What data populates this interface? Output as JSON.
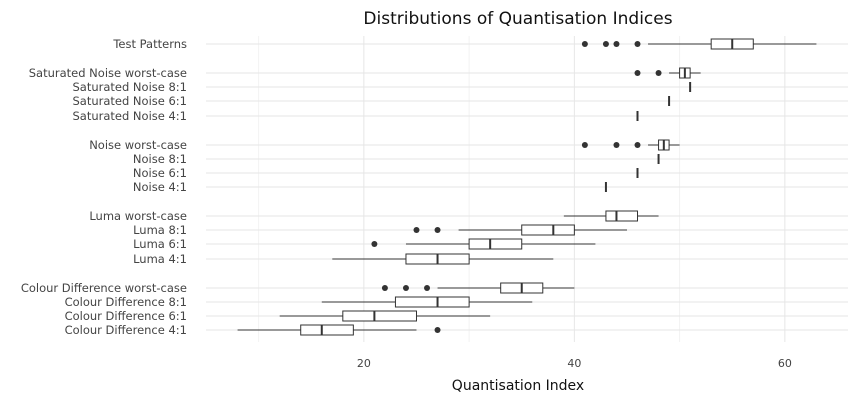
{
  "chart_data": {
    "type": "boxplot",
    "orientation": "horizontal",
    "title": "Distributions of Quantisation Indices",
    "xlabel": "Quantisation Index",
    "ylabel": "",
    "xlim": [
      5,
      66
    ],
    "xticks": [
      20,
      40,
      60
    ],
    "grid": true,
    "colors": {
      "box_fill": "#ffffff",
      "stroke": "#333333",
      "outlier": "#333333",
      "grid": "#e6e6e6"
    },
    "categories": [
      {
        "label": "Test Patterns",
        "whisker_low": 47,
        "q1": 53,
        "median": 55,
        "q3": 57,
        "whisker_high": 63,
        "outliers": [
          41,
          43,
          44,
          46
        ]
      },
      {
        "label": "Saturated Noise worst-case",
        "whisker_low": 49,
        "q1": 50,
        "median": 50.5,
        "q3": 51,
        "whisker_high": 52,
        "outliers": [
          46,
          48
        ]
      },
      {
        "label": "Saturated Noise 8:1",
        "whisker_low": 51,
        "q1": 51,
        "median": 51,
        "q3": 51,
        "whisker_high": 51,
        "outliers": []
      },
      {
        "label": "Saturated Noise 6:1",
        "whisker_low": 49,
        "q1": 49,
        "median": 49,
        "q3": 49,
        "whisker_high": 49,
        "outliers": []
      },
      {
        "label": "Saturated Noise 4:1",
        "whisker_low": 46,
        "q1": 46,
        "median": 46,
        "q3": 46,
        "whisker_high": 46,
        "outliers": []
      },
      {
        "label": "Noise worst-case",
        "whisker_low": 47,
        "q1": 48,
        "median": 48.5,
        "q3": 49,
        "whisker_high": 50,
        "outliers": [
          41,
          44,
          46
        ]
      },
      {
        "label": "Noise 8:1",
        "whisker_low": 48,
        "q1": 48,
        "median": 48,
        "q3": 48,
        "whisker_high": 48,
        "outliers": []
      },
      {
        "label": "Noise 6:1",
        "whisker_low": 46,
        "q1": 46,
        "median": 46,
        "q3": 46,
        "whisker_high": 46,
        "outliers": []
      },
      {
        "label": "Noise 4:1",
        "whisker_low": 43,
        "q1": 43,
        "median": 43,
        "q3": 43,
        "whisker_high": 43,
        "outliers": []
      },
      {
        "label": "Luma worst-case",
        "whisker_low": 39,
        "q1": 43,
        "median": 44,
        "q3": 46,
        "whisker_high": 48,
        "outliers": []
      },
      {
        "label": "Luma 8:1",
        "whisker_low": 29,
        "q1": 35,
        "median": 38,
        "q3": 40,
        "whisker_high": 45,
        "outliers": [
          25,
          27
        ]
      },
      {
        "label": "Luma 6:1",
        "whisker_low": 24,
        "q1": 30,
        "median": 32,
        "q3": 35,
        "whisker_high": 42,
        "outliers": [
          21
        ]
      },
      {
        "label": "Luma 4:1",
        "whisker_low": 17,
        "q1": 24,
        "median": 27,
        "q3": 30,
        "whisker_high": 38,
        "outliers": []
      },
      {
        "label": "Colour Difference worst-case",
        "whisker_low": 27,
        "q1": 33,
        "median": 35,
        "q3": 37,
        "whisker_high": 40,
        "outliers": [
          22,
          24,
          26
        ]
      },
      {
        "label": "Colour Difference 8:1",
        "whisker_low": 16,
        "q1": 23,
        "median": 27,
        "q3": 30,
        "whisker_high": 36,
        "outliers": []
      },
      {
        "label": "Colour Difference 6:1",
        "whisker_low": 12,
        "q1": 18,
        "median": 21,
        "q3": 25,
        "whisker_high": 32,
        "outliers": []
      },
      {
        "label": "Colour Difference 4:1",
        "whisker_low": 8,
        "q1": 14,
        "median": 16,
        "q3": 19,
        "whisker_high": 25,
        "outliers": [
          27
        ]
      }
    ]
  }
}
